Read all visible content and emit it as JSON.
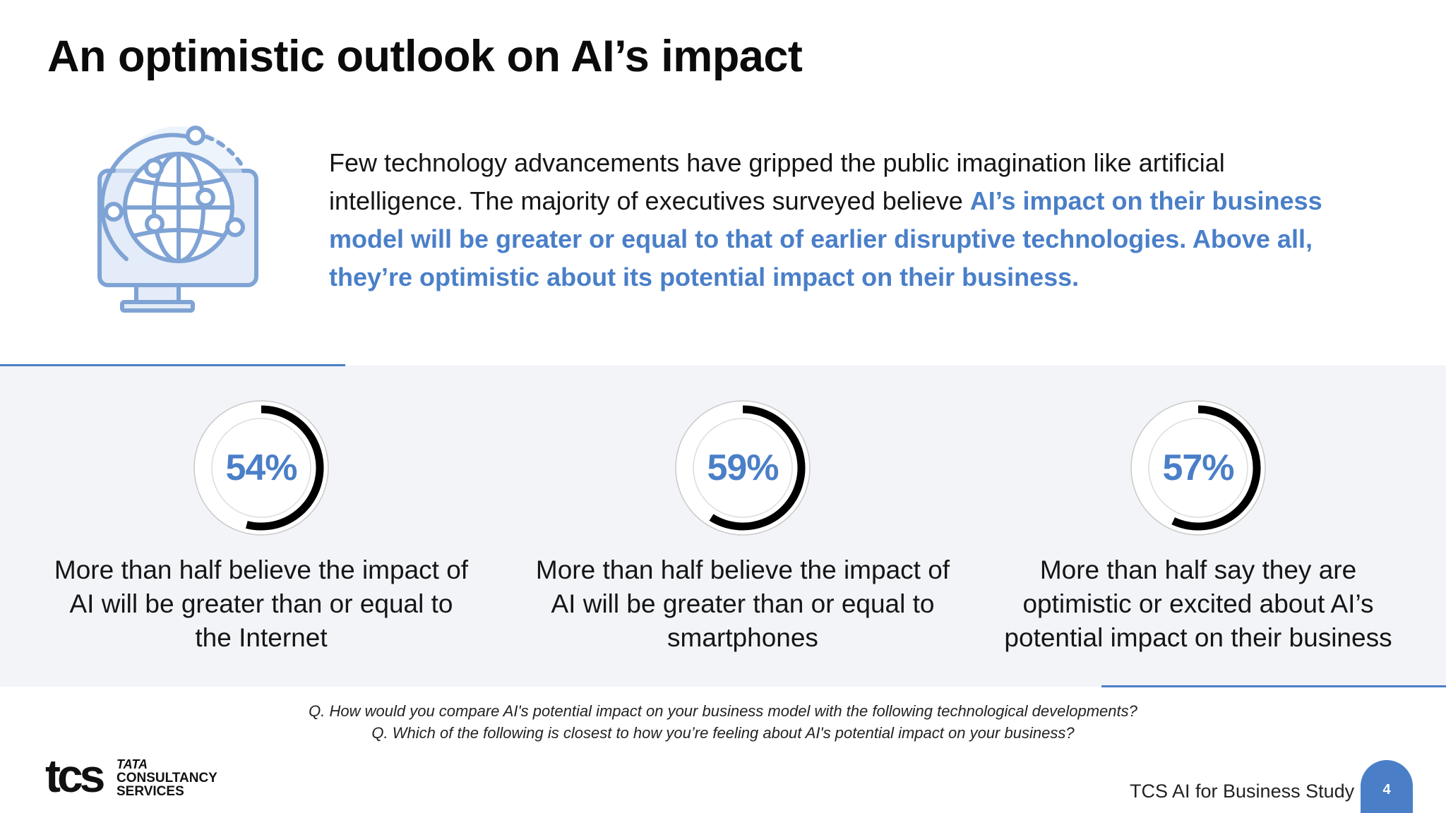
{
  "title": "An optimistic outlook on AI’s impact",
  "intro": {
    "plain": "Few technology advancements have gripped the public imagination like artificial intelligence. The majority of executives surveyed believe ",
    "highlight": "AI’s impact on their business model will be greater or equal to that of earlier disruptive technologies. Above all, they’re optimistic about its potential impact on their business."
  },
  "icon": "globe-monitor-icon",
  "colors": {
    "accent": "#4a7fc8",
    "ring": "#000000",
    "band": "#f2f4f8"
  },
  "stats": [
    {
      "percent_label": "54%",
      "value": 54,
      "description": "More than half believe the impact of AI will be greater than or equal to the Internet"
    },
    {
      "percent_label": "59%",
      "value": 59,
      "description": "More than half believe the impact of AI will be greater than or equal to smartphones"
    },
    {
      "percent_label": "57%",
      "value": 57,
      "description": "More than half say they are optimistic or excited about AI’s potential impact on their business"
    }
  ],
  "questions": [
    "Q. How would you compare AI's potential impact on your business model with the following technological developments?",
    "Q. Which of the following is closest to how you’re feeling about AI's potential impact on your business?"
  ],
  "footer": {
    "logo_mark": "tcs",
    "logo_lines": [
      "TATA",
      "CONSULTANCY",
      "SERVICES"
    ],
    "study_name": "TCS AI for Business Study",
    "page_number": "4"
  }
}
